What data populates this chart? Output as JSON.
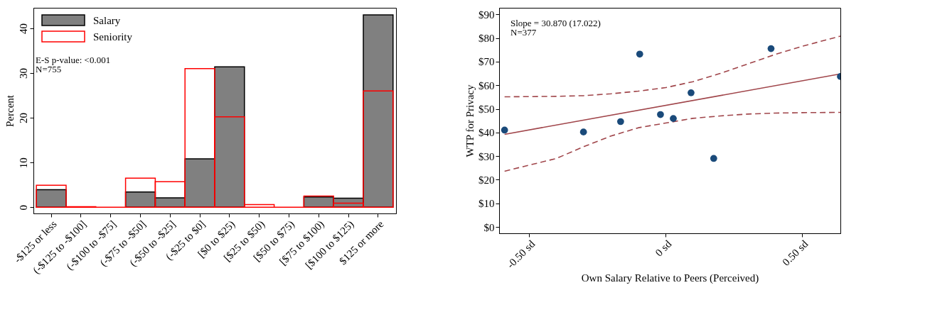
{
  "chart_data": [
    {
      "type": "bar",
      "ylabel": "Percent",
      "categories": [
        "-$125 or less",
        "(-$125 to -$100]",
        "(-$100 to -$75]",
        "(-$75 to -$50]",
        "(-$50 to -$25]",
        "(-$25 to $0]",
        "[$0 to $25)",
        "[$25 to $50)",
        "[$50 to $75)",
        "[$75 to $100)",
        "[$100 to $125)",
        "$125 or more"
      ],
      "series": [
        {
          "name": "Salary",
          "color": "#808080",
          "values": [
            3.9,
            0,
            0,
            3.4,
            2.1,
            10.8,
            31.4,
            0,
            0,
            2.3,
            2.0,
            43.0
          ]
        },
        {
          "name": "Seniority",
          "color": "#ff0000",
          "values": [
            4.9,
            0.1,
            0,
            6.5,
            5.7,
            31.0,
            20.2,
            0.6,
            0,
            2.5,
            0.9,
            26.0
          ]
        }
      ],
      "ylim": [
        -1.4,
        44.6
      ],
      "yticks": [
        0,
        10,
        20,
        30,
        40
      ],
      "grid": false,
      "legend": "top left",
      "annotations": [
        "E-S p-value: <0.001",
        "N=755"
      ]
    },
    {
      "type": "scatter",
      "xlabel": "Own Salary Relative to Peers (Perceived)",
      "ylabel": "WTP for Privacy",
      "series": [
        {
          "type": "scatter",
          "color": "#1a4a7a",
          "marker": "circle",
          "x": [
            -0.59,
            -0.301,
            -0.165,
            -0.095,
            -0.019,
            0.028,
            0.093,
            0.176,
            0.386,
            0.64
          ],
          "values": [
            41.0,
            40.2,
            44.6,
            73.2,
            47.6,
            45.9,
            56.8,
            29.0,
            75.5,
            63.7
          ]
        },
        {
          "type": "line",
          "color": "#a0454a",
          "line_style": "solid",
          "x": [
            -0.59,
            0.64
          ],
          "values": [
            39.2,
            64.8
          ]
        },
        {
          "type": "line",
          "color": "#a0454a",
          "line_style": "dashed",
          "x": [
            -0.59,
            -0.4,
            -0.3,
            -0.2,
            -0.1,
            0,
            0.1,
            0.2,
            0.3,
            0.4,
            0.5,
            0.64
          ],
          "values": [
            55.1,
            55.3,
            55.6,
            56.4,
            57.5,
            59.0,
            61.5,
            65.0,
            69.0,
            73.0,
            76.5,
            80.8
          ]
        },
        {
          "type": "line",
          "color": "#a0454a",
          "line_style": "dashed",
          "x": [
            -0.59,
            -0.4,
            -0.3,
            -0.2,
            -0.1,
            0,
            0.1,
            0.2,
            0.3,
            0.4,
            0.5,
            0.64
          ],
          "values": [
            23.6,
            29.0,
            34.0,
            38.5,
            42.0,
            44.0,
            46.0,
            47.0,
            47.8,
            48.2,
            48.4,
            48.5
          ]
        }
      ],
      "xlim": [
        -0.61,
        0.64
      ],
      "xticks": [
        {
          "value": -0.5,
          "label": "-0.50 sd"
        },
        {
          "value": 0,
          "label": "0 sd"
        },
        {
          "value": 0.5,
          "label": "0.50 sd"
        }
      ],
      "ylim": [
        -2.7,
        92.8
      ],
      "yticks": [
        {
          "value": 0,
          "label": "$0"
        },
        {
          "value": 10,
          "label": "$10"
        },
        {
          "value": 20,
          "label": "$20"
        },
        {
          "value": 30,
          "label": "$30"
        },
        {
          "value": 40,
          "label": "$40"
        },
        {
          "value": 50,
          "label": "$50"
        },
        {
          "value": 60,
          "label": "$60"
        },
        {
          "value": 70,
          "label": "$70"
        },
        {
          "value": 80,
          "label": "$80"
        },
        {
          "value": 90,
          "label": "$90"
        }
      ],
      "grid": false,
      "annotations": [
        "Slope = 30.870 (17.022)",
        "N=377"
      ]
    }
  ]
}
